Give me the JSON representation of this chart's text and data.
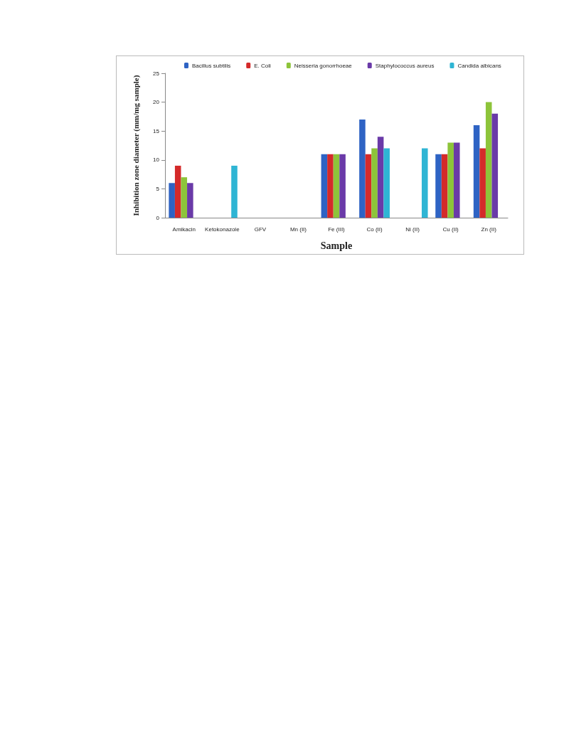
{
  "chart_data": {
    "type": "bar",
    "xlabel": "Sample",
    "ylabel": "Inhibition zone diameter (mm/mg sample)",
    "categories": [
      "Amikacin",
      "Ketokonazole",
      "GFV",
      "Mn (II)",
      "Fe (III)",
      "Co (II)",
      "Ni (II)",
      "Cu (II)",
      "Zn (II)"
    ],
    "series": [
      {
        "name": "Bacillus subtilis",
        "color": "#2e63c4",
        "values": [
          6,
          null,
          null,
          null,
          11,
          17,
          null,
          11,
          16
        ]
      },
      {
        "name": "E. Coli",
        "color": "#d42a2a",
        "values": [
          9,
          null,
          null,
          null,
          11,
          11,
          null,
          11,
          12
        ]
      },
      {
        "name": "Neisseria gonorrhoeae",
        "color": "#8dc43a",
        "values": [
          7,
          null,
          null,
          null,
          11,
          12,
          null,
          13,
          20
        ]
      },
      {
        "name": "Staphylococcus aureus",
        "color": "#6a3aa8",
        "values": [
          6,
          null,
          null,
          null,
          11,
          14,
          null,
          13,
          18
        ]
      },
      {
        "name": "Candida albicans",
        "color": "#2fb5d4",
        "values": [
          null,
          9,
          null,
          null,
          null,
          12,
          12,
          null,
          null
        ]
      }
    ],
    "ylim": [
      0,
      25
    ],
    "yticks": [
      0,
      5,
      10,
      15,
      20,
      25
    ],
    "grid": false,
    "legend": "top"
  }
}
